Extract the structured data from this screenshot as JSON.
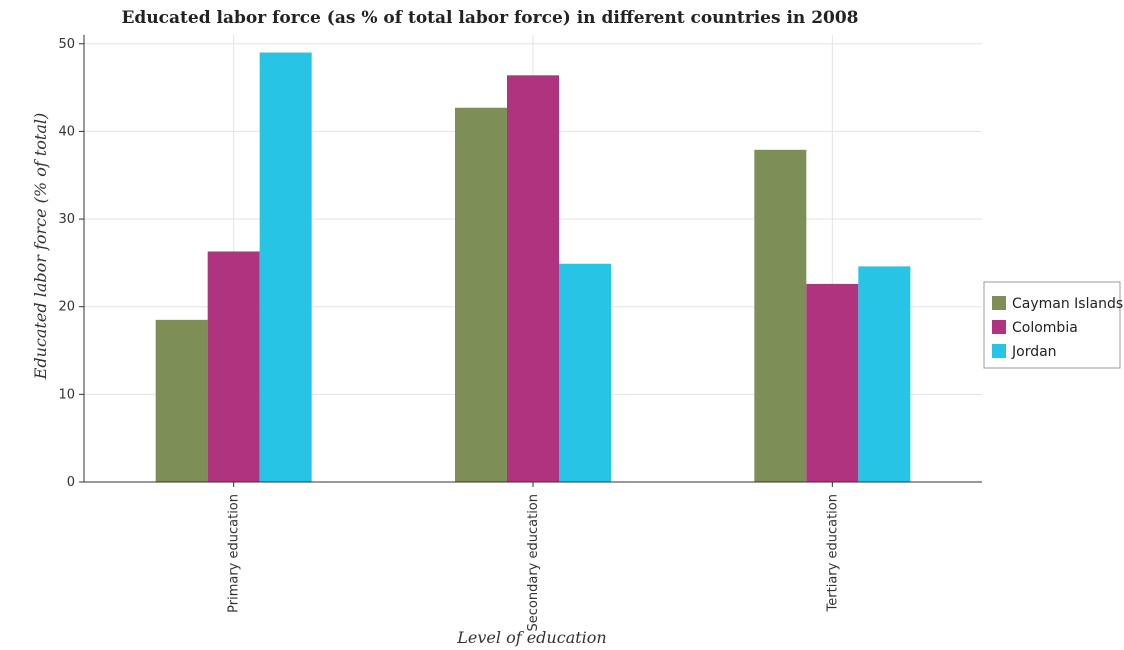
{
  "chart_data": {
    "type": "bar",
    "title": "Educated labor force (as % of total labor force) in different countries in 2008",
    "xlabel": "Level of education",
    "ylabel": "Educated labor force (% of total)",
    "categories": [
      "Primary education",
      "Secondary education",
      "Tertiary education"
    ],
    "ylim": [
      0,
      51
    ],
    "yticks": [
      0,
      10,
      20,
      30,
      40,
      50
    ],
    "grid": true,
    "legend_position": "right",
    "series": [
      {
        "name": "Cayman Islands",
        "color": "#7d8f57",
        "values": [
          18.5,
          42.7,
          37.9
        ]
      },
      {
        "name": "Colombia",
        "color": "#b0337f",
        "values": [
          26.3,
          46.4,
          22.6
        ]
      },
      {
        "name": "Jordan",
        "color": "#27c4e6",
        "values": [
          49.0,
          24.9,
          24.6
        ]
      }
    ]
  }
}
